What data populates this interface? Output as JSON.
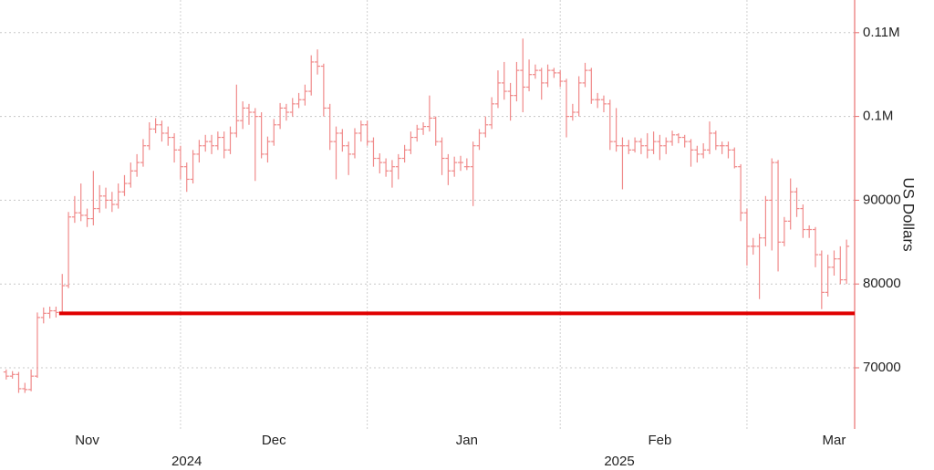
{
  "chart_data": {
    "type": "ohlc",
    "y_axis_label": "US Dollars",
    "color": "#f08a8a",
    "axis_color": "#e87070",
    "xlim": [
      -1,
      136.3
    ],
    "ylim": [
      62700,
      113900
    ],
    "yticks": [
      70000,
      80000,
      90000,
      {
        "value": 100000,
        "label": "0.1M"
      },
      {
        "value": 110000,
        "label": "0.11M"
      }
    ],
    "xticks": [
      {
        "value": 13,
        "label": "Nov"
      },
      {
        "value": 43,
        "label": "Dec"
      },
      {
        "value": 74,
        "label": "Jan"
      },
      {
        "value": 105,
        "label": "Feb"
      },
      {
        "value": 133,
        "label": "Mar"
      }
    ],
    "year_labels": [
      {
        "value": 29,
        "label": "2024"
      },
      {
        "value": 98.5,
        "label": "2025"
      }
    ],
    "xgrid": [
      28,
      58,
      89,
      119
    ],
    "grid": true,
    "reference_line": {
      "value": 76500,
      "from_x": 8.5,
      "color": "#e00000"
    },
    "open": [
      69500,
      69000,
      69200,
      67500,
      67400,
      69000,
      76000,
      76500,
      76800,
      76600,
      79800,
      88000,
      88500,
      88200,
      87800,
      89000,
      90500,
      90000,
      89500,
      91000,
      92000,
      93500,
      94500,
      96500,
      98500,
      99000,
      98000,
      97500,
      96000,
      94000,
      92500,
      95500,
      96500,
      97000,
      96500,
      97500,
      96000,
      98000,
      99500,
      101000,
      100500,
      100000,
      95500,
      97000,
      99000,
      101000,
      100500,
      101500,
      102000,
      103000,
      106500,
      106000,
      101000,
      97000,
      98000,
      96500,
      95500,
      98000,
      99000,
      97000,
      95000,
      94500,
      93500,
      94000,
      95000,
      96000,
      97500,
      98500,
      98800,
      99800,
      97000,
      95000,
      93500,
      94500,
      94000,
      94000,
      96500,
      98000,
      99000,
      101500,
      104000,
      103000,
      102500,
      105500,
      103500,
      105000,
      105500,
      104000,
      105500,
      105200,
      104200,
      100000,
      100500,
      104000,
      105500,
      102000,
      102000,
      101500,
      97000,
      96500,
      96500,
      96000,
      97000,
      96500,
      96000,
      97000,
      96500,
      97000,
      97800,
      97500,
      97000,
      96000,
      95500,
      96000,
      98000,
      96500,
      96500,
      96000,
      94000,
      88500,
      84500,
      84500,
      85500,
      90000,
      94500,
      85000,
      87500,
      91000,
      89000,
      86500,
      86500,
      83500,
      79000,
      82000,
      83000,
      80500
    ],
    "high": [
      69800,
      69600,
      69500,
      68200,
      69800,
      76600,
      77200,
      77300,
      77300,
      81200,
      88600,
      90500,
      92000,
      89000,
      93500,
      91800,
      91500,
      91000,
      92000,
      93000,
      94500,
      95500,
      97300,
      99300,
      99800,
      99500,
      98800,
      98000,
      96500,
      94500,
      96000,
      97200,
      97800,
      97800,
      98200,
      98200,
      98800,
      103800,
      101800,
      101500,
      101000,
      100500,
      97600,
      99700,
      101600,
      101500,
      102200,
      102800,
      103800,
      107300,
      108000,
      106300,
      101500,
      98800,
      98500,
      97000,
      98600,
      99500,
      99500,
      97500,
      95600,
      95000,
      94800,
      95500,
      96600,
      98200,
      99000,
      99300,
      102500,
      100000,
      97500,
      95500,
      95200,
      95300,
      95000,
      97000,
      98500,
      100000,
      102300,
      105500,
      106500,
      104000,
      106500,
      109300,
      106800,
      106200,
      105800,
      106200,
      105800,
      105500,
      104500,
      101500,
      104800,
      106400,
      105800,
      102800,
      102500,
      102000,
      101000,
      97500,
      97200,
      97500,
      97400,
      98000,
      98200,
      97800,
      97500,
      98300,
      98000,
      97800,
      97300,
      96500,
      96800,
      99400,
      98300,
      97000,
      97000,
      96300,
      94300,
      89000,
      85500,
      86000,
      90500,
      95000,
      94800,
      88000,
      92600,
      91500,
      89500,
      87000,
      86800,
      84000,
      83500,
      84000,
      84500,
      85300
    ],
    "low": [
      68600,
      68700,
      67000,
      67000,
      67200,
      68800,
      75300,
      75900,
      76000,
      76500,
      79500,
      87300,
      87500,
      86800,
      87000,
      88500,
      89000,
      88600,
      89000,
      90500,
      91500,
      92800,
      94000,
      96000,
      98000,
      97000,
      96500,
      94500,
      92500,
      91000,
      92000,
      94500,
      95800,
      95500,
      96000,
      95000,
      95500,
      97500,
      98500,
      99000,
      92300,
      95000,
      94500,
      96500,
      98500,
      99500,
      100000,
      101000,
      101300,
      102500,
      105000,
      100000,
      96000,
      92500,
      95800,
      93000,
      95000,
      97000,
      96500,
      94000,
      93200,
      92800,
      91500,
      92500,
      94500,
      95500,
      97000,
      97800,
      98200,
      96500,
      93000,
      91800,
      92800,
      93500,
      93600,
      89300,
      96000,
      97500,
      98500,
      101000,
      102000,
      99500,
      101800,
      100500,
      103000,
      104500,
      102000,
      103500,
      104600,
      103500,
      97500,
      99500,
      100000,
      103500,
      101500,
      101000,
      100500,
      96000,
      95800,
      91300,
      95500,
      95700,
      95500,
      95000,
      95500,
      94800,
      95500,
      96500,
      96800,
      96300,
      94000,
      94500,
      95000,
      95500,
      96000,
      95500,
      95000,
      93800,
      87500,
      82200,
      83500,
      78200,
      84500,
      84000,
      81500,
      84500,
      86500,
      88000,
      85500,
      85500,
      82000,
      77000,
      78500,
      81000,
      80000,
      80000
    ],
    "close": [
      69000,
      69200,
      67500,
      67400,
      69000,
      76000,
      76500,
      76800,
      76600,
      79800,
      88000,
      88500,
      88200,
      87800,
      89000,
      90500,
      90000,
      89500,
      91000,
      92000,
      93500,
      94500,
      96500,
      98500,
      99000,
      98000,
      97500,
      96000,
      94000,
      92500,
      95500,
      96500,
      97000,
      96500,
      97500,
      96000,
      98000,
      99500,
      101000,
      100500,
      100000,
      95500,
      97000,
      99000,
      101000,
      100500,
      101500,
      102000,
      103000,
      106500,
      106000,
      101000,
      97000,
      98000,
      96500,
      95500,
      98000,
      99000,
      97000,
      95000,
      94500,
      93500,
      94000,
      95000,
      96000,
      97500,
      98500,
      98800,
      99800,
      97000,
      95000,
      93500,
      94500,
      94500,
      94000,
      96500,
      98000,
      99000,
      101500,
      104000,
      103000,
      102500,
      105500,
      103500,
      105000,
      105500,
      104000,
      105500,
      105200,
      104200,
      100000,
      100500,
      104000,
      105500,
      102000,
      102000,
      101500,
      97000,
      96500,
      96500,
      96000,
      97000,
      96500,
      96000,
      97000,
      96500,
      97000,
      97800,
      97500,
      97000,
      96000,
      95500,
      96000,
      98000,
      96500,
      96500,
      96000,
      94000,
      88500,
      84500,
      84500,
      85500,
      90000,
      94500,
      85000,
      87500,
      91000,
      89000,
      86500,
      86500,
      83500,
      79000,
      82000,
      83000,
      80500,
      84500
    ]
  }
}
